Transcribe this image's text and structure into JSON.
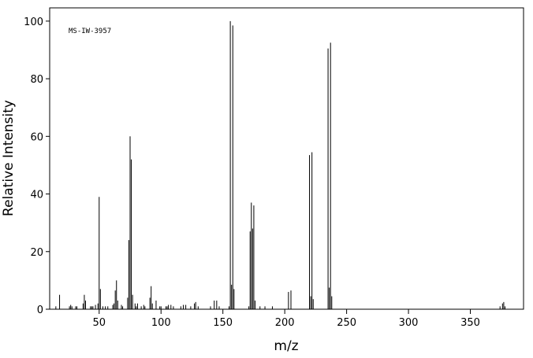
{
  "chart_data": {
    "type": "stick",
    "annotation": "MS-IW-3957",
    "xlabel": "m/z",
    "ylabel": "Relative Intensity",
    "color": "#000000",
    "xlim": [
      10,
      393
    ],
    "ylim": [
      0,
      104.6
    ],
    "xticks": [
      50,
      100,
      150,
      200,
      250,
      300,
      350
    ],
    "yticks": [
      0,
      20,
      40,
      60,
      80,
      100
    ],
    "x": [
      15,
      18,
      26,
      27,
      28,
      31,
      32,
      37,
      38,
      39,
      43,
      44,
      45,
      47,
      49,
      50,
      51,
      53,
      55,
      57,
      61,
      62,
      63,
      64,
      65,
      68,
      69,
      73,
      74,
      75,
      76,
      77,
      79,
      80,
      81,
      84,
      86,
      87,
      91,
      92,
      93,
      96,
      99,
      100,
      104,
      105,
      106,
      108,
      110,
      116,
      118,
      120,
      124,
      127,
      128,
      130,
      140,
      143,
      145,
      147,
      155,
      156,
      157,
      158,
      159,
      171,
      172,
      173,
      174,
      175,
      176,
      180,
      184,
      190,
      203,
      205,
      220,
      221,
      222,
      223,
      235,
      236,
      237,
      238,
      374,
      376,
      377,
      378
    ],
    "values": [
      1,
      5,
      1,
      1.5,
      1,
      1,
      1,
      2,
      5,
      3,
      1,
      1,
      1,
      1.5,
      2,
      39,
      7,
      1,
      1,
      1,
      1.5,
      2,
      6.5,
      10,
      3,
      1.5,
      1,
      4,
      24,
      60,
      52,
      5,
      2,
      1,
      2,
      1,
      1.5,
      1,
      4,
      8,
      2,
      3,
      1,
      1,
      1,
      1,
      1.5,
      1.5,
      1,
      1,
      1.5,
      1.5,
      1,
      2,
      2.5,
      1,
      1,
      3,
      3,
      1,
      1,
      100,
      8.5,
      98.5,
      7,
      1,
      27,
      37,
      28,
      36,
      3,
      1,
      1,
      1,
      6,
      6.5,
      53.5,
      4.5,
      54.5,
      3.5,
      90.5,
      7.5,
      92.5,
      4.5,
      1,
      2,
      2.5,
      1
    ]
  }
}
